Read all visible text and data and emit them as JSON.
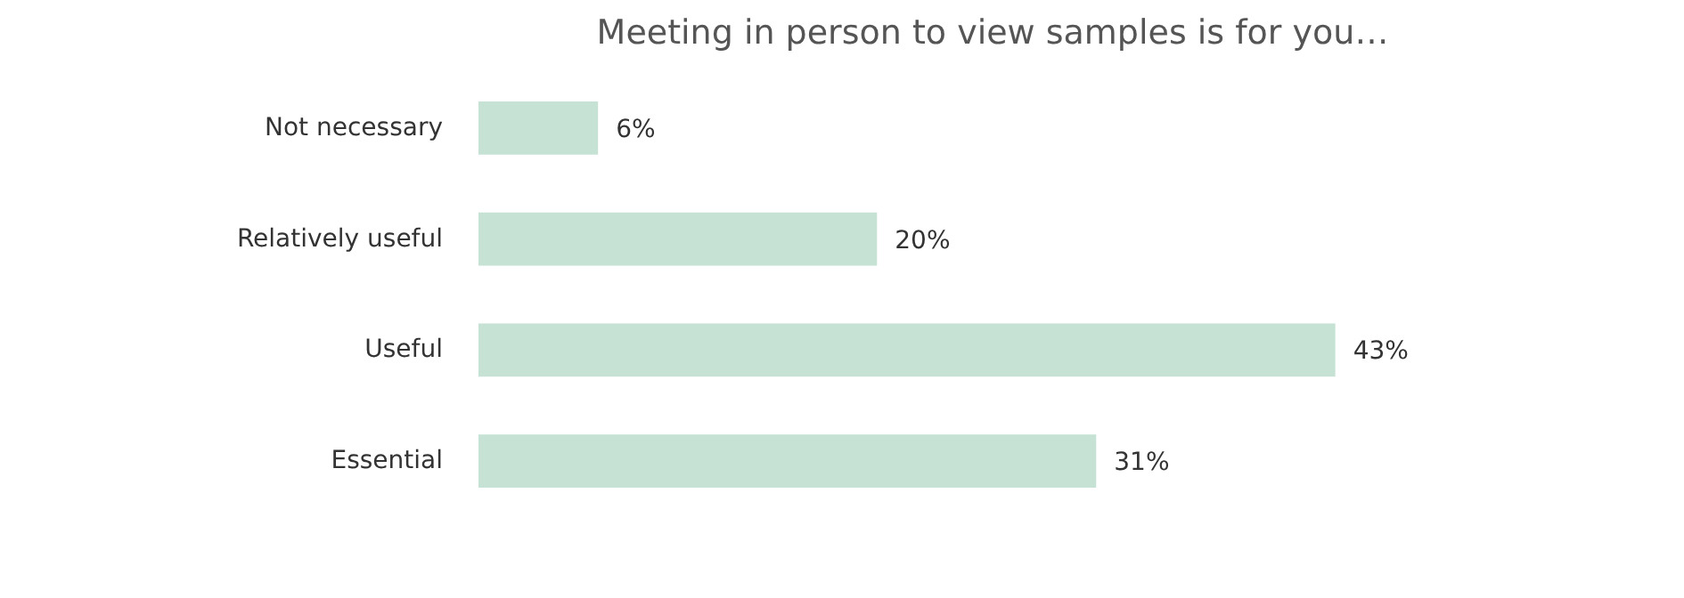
{
  "chart_data": {
    "type": "bar",
    "orientation": "horizontal",
    "title": "Meeting in person to view samples is for you…",
    "categories": [
      "Not necessary",
      "Relatively useful",
      "Useful",
      "Essential"
    ],
    "values": [
      6,
      20,
      43,
      31
    ],
    "value_labels": [
      "6%",
      "20%",
      "43%",
      "31%"
    ],
    "color": "#c6e2d5"
  }
}
